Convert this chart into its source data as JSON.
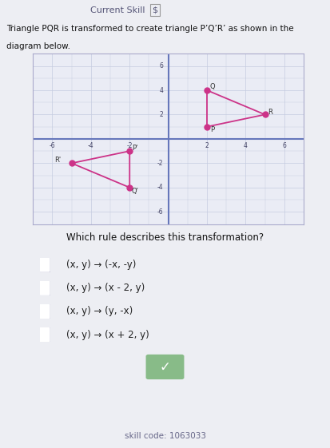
{
  "title_text": "Current Skill",
  "title_dollar": "$",
  "problem_text1": "Triangle PQR is transformed to create triangle P’Q’R’ as shown in the",
  "problem_text2": "diagram below.",
  "triangle_PQR": {
    "P": [
      2,
      1
    ],
    "Q": [
      2,
      4
    ],
    "R": [
      5,
      2
    ]
  },
  "triangle_PQR_prime": {
    "P_prime": [
      -2,
      -1
    ],
    "Q_prime": [
      -2,
      -4
    ],
    "R_prime": [
      -5,
      -2
    ]
  },
  "triangle_color": "#cc3388",
  "grid_color": "#c5cce0",
  "axis_color": "#6677bb",
  "bg_color": "#edeef3",
  "plot_bg": "#eaecf5",
  "xlim": [
    -7,
    7
  ],
  "ylim": [
    -7,
    7
  ],
  "xticks": [
    -6,
    -4,
    -2,
    2,
    4,
    6
  ],
  "yticks": [
    -6,
    -4,
    -2,
    2,
    4,
    6
  ],
  "question_text": "Which rule describes this transformation?",
  "options": [
    "(x, y) → (-x, -y)",
    "(x, y) → (x - 2, y)",
    "(x, y) → (y, -x)",
    "(x, y) → (x + 2, y)"
  ],
  "skill_code": "skill code: 1063033",
  "checkmark_color": "#88bb88",
  "divider_color": "#ccccdd",
  "checkbox_color": "#ddddee",
  "font_size_title": 8,
  "font_size_problem": 7.5,
  "font_size_options": 8.5,
  "font_size_skill": 7.5
}
